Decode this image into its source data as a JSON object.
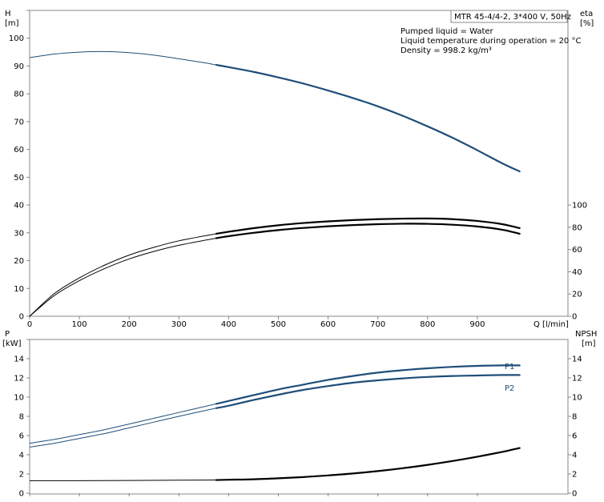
{
  "chart_data": [
    {
      "type": "line",
      "title": "MTR 45-4/4-2, 3*400 V, 50Hz",
      "info_lines": [
        "Pumped liquid = Water",
        "Liquid temperature during operation = 20 °C",
        "Density = 998.2 kg/m³"
      ],
      "xlabel": "Q [l/min]",
      "xlim": [
        0,
        1000
      ],
      "x_ticks": [
        "0",
        "100",
        "200",
        "300",
        "400",
        "500",
        "600",
        "700",
        "800",
        "900"
      ],
      "y_left": {
        "label_top": "H",
        "label_unit": "[m]",
        "lim": [
          0,
          110
        ],
        "ticks": [
          "0",
          "10",
          "20",
          "30",
          "40",
          "50",
          "60",
          "70",
          "80",
          "90",
          "100"
        ]
      },
      "y_right": {
        "label_top": "eta",
        "label_unit": "[%]",
        "lim": [
          0,
          275
        ],
        "ticks": [
          "0",
          "20",
          "40",
          "60",
          "80",
          "100"
        ]
      },
      "series": [
        {
          "id": "H",
          "axis": "left",
          "color": "#1f4e79",
          "x": [
            0,
            50,
            100,
            150,
            200,
            250,
            300,
            350,
            375,
            400,
            450,
            500,
            550,
            600,
            650,
            700,
            750,
            800,
            850,
            900,
            950,
            985
          ],
          "y": [
            93,
            94.3,
            95,
            95.2,
            94.8,
            93.9,
            92.6,
            91.2,
            90.4,
            89.6,
            87.9,
            85.9,
            83.7,
            81.2,
            78.5,
            75.5,
            72.1,
            68.3,
            64.2,
            59.7,
            55,
            52.1
          ]
        },
        {
          "id": "eta-1",
          "axis": "right",
          "color": "#000000",
          "x": [
            0,
            50,
            100,
            150,
            200,
            250,
            300,
            375,
            400,
            450,
            500,
            550,
            600,
            650,
            700,
            750,
            800,
            850,
            900,
            950,
            985
          ],
          "y": [
            0,
            20.5,
            34.5,
            45.8,
            55,
            62,
            67.8,
            74.2,
            76,
            79.2,
            81.8,
            83.8,
            85.3,
            86.5,
            87.3,
            87.8,
            87.9,
            87.3,
            85.7,
            82.8,
            79.2
          ]
        },
        {
          "id": "eta-2",
          "axis": "right",
          "color": "#000000",
          "x": [
            0,
            50,
            100,
            150,
            200,
            250,
            300,
            375,
            400,
            450,
            500,
            550,
            600,
            650,
            700,
            750,
            800,
            850,
            900,
            950,
            985
          ],
          "y": [
            0,
            18.7,
            32,
            42.7,
            51.5,
            58.3,
            63.8,
            70.2,
            72,
            75,
            77.5,
            79.4,
            80.9,
            82,
            82.8,
            83.2,
            83.1,
            82.3,
            80.7,
            77.8,
            74.2
          ]
        }
      ]
    },
    {
      "type": "line",
      "xlim": [
        0,
        1000
      ],
      "y_left": {
        "label_top": "P",
        "label_unit": "[kW]",
        "lim": [
          0,
          16
        ],
        "ticks": [
          "0",
          "2",
          "4",
          "6",
          "8",
          "10",
          "12",
          "14"
        ]
      },
      "y_right": {
        "label_top": "NPSH",
        "label_unit": "[m]",
        "lim": [
          0,
          16
        ],
        "ticks": [
          "0",
          "2",
          "4",
          "6",
          "8",
          "10",
          "12",
          "14"
        ]
      },
      "series": [
        {
          "id": "P1",
          "name": "P1",
          "axis": "left",
          "color": "#1f4e79",
          "x": [
            0,
            50,
            100,
            150,
            200,
            250,
            300,
            375,
            400,
            450,
            500,
            550,
            600,
            650,
            700,
            750,
            800,
            850,
            900,
            950,
            985
          ],
          "y": [
            5.2,
            5.6,
            6.1,
            6.6,
            7.2,
            7.8,
            8.4,
            9.3,
            9.6,
            10.2,
            10.8,
            11.3,
            11.8,
            12.2,
            12.55,
            12.8,
            13.0,
            13.15,
            13.25,
            13.3,
            13.3
          ]
        },
        {
          "id": "P2",
          "name": "P2",
          "axis": "left",
          "color": "#1f4e79",
          "x": [
            0,
            50,
            100,
            150,
            200,
            250,
            300,
            375,
            400,
            450,
            500,
            550,
            600,
            650,
            700,
            750,
            800,
            850,
            900,
            950,
            985
          ],
          "y": [
            4.8,
            5.2,
            5.7,
            6.2,
            6.8,
            7.4,
            8.0,
            8.85,
            9.1,
            9.7,
            10.25,
            10.75,
            11.15,
            11.5,
            11.75,
            11.95,
            12.1,
            12.2,
            12.25,
            12.3,
            12.3
          ]
        },
        {
          "id": "NPSH",
          "axis": "right",
          "color": "#000000",
          "x": [
            0,
            100,
            200,
            300,
            375,
            400,
            450,
            500,
            550,
            600,
            650,
            700,
            750,
            800,
            850,
            900,
            950,
            985
          ],
          "y": [
            1.3,
            1.3,
            1.32,
            1.35,
            1.37,
            1.4,
            1.45,
            1.55,
            1.68,
            1.85,
            2.05,
            2.3,
            2.6,
            2.95,
            3.35,
            3.8,
            4.3,
            4.7
          ]
        }
      ]
    }
  ]
}
